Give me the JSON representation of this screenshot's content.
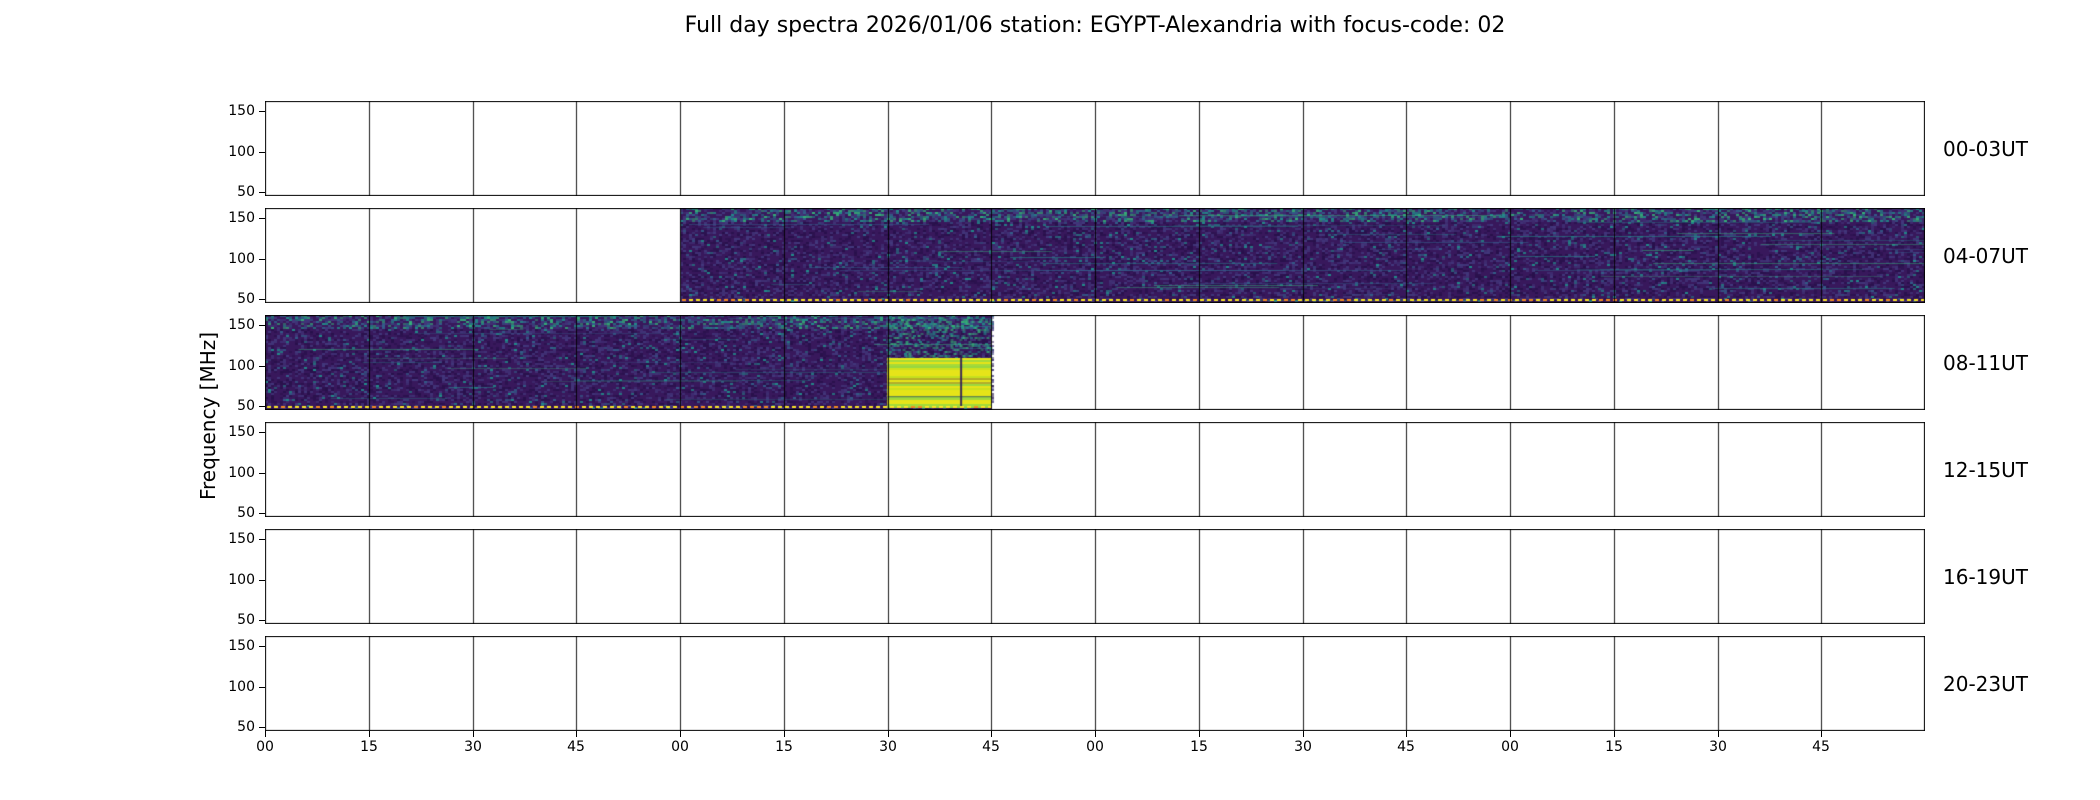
{
  "title": "Full day spectra 2026/01/06 station: EGYPT-Alexandria with focus-code: 02",
  "ylabel": "Frequency [MHz]",
  "chart_data": {
    "type": "heatmap",
    "title": "Full day spectra 2026/01/06 station: EGYPT-Alexandria with focus-code: 02",
    "ylabel": "Frequency [MHz]",
    "y_unit": "MHz",
    "ylim": [
      45,
      163
    ],
    "yticks": [
      150,
      100,
      50
    ],
    "hours_per_row": 4,
    "minutes_per_segment": 15,
    "xtick_labels": [
      "00",
      "15",
      "30",
      "45",
      "00",
      "15",
      "30",
      "45",
      "00",
      "15",
      "30",
      "45",
      "00",
      "15",
      "30",
      "45"
    ],
    "rows": [
      {
        "label": "00-03UT",
        "coverage": []
      },
      {
        "label": "04-07UT",
        "coverage": [
          {
            "start_frac": 0.25,
            "end_frac": 1.0,
            "start_time": "05:00",
            "end_time": "08:00"
          }
        ]
      },
      {
        "label": "08-11UT",
        "coverage": [
          {
            "start_frac": 0.0,
            "end_frac": 0.4375,
            "start_time": "08:00",
            "end_time": "09:45"
          }
        ],
        "burst": {
          "start_frac": 0.375,
          "end_frac": 0.4375,
          "start_time": "09:30",
          "end_time": "09:45",
          "freq_low": 45,
          "freq_high": 110,
          "description": "bright saturated emission block"
        }
      },
      {
        "label": "12-15UT",
        "coverage": []
      },
      {
        "label": "16-19UT",
        "coverage": []
      },
      {
        "label": "20-23UT",
        "coverage": []
      }
    ],
    "colors": {
      "background": "#ffffff",
      "axis": "#000000",
      "spectrum_base": "#38185c",
      "spectrum_dark": "#27104a",
      "spectrum_mid": "#433a7e",
      "spectrum_blue": "#33638d",
      "spectrum_teal": "#21918c",
      "spectrum_green": "#35b779",
      "spectrum_lightgreen": "#5ec962",
      "burst_yellow": "#e6e419",
      "burst_green": "#8ed645",
      "dotted_line_yellow": "#fde725",
      "dotted_line_orange": "#f58c1f"
    }
  }
}
